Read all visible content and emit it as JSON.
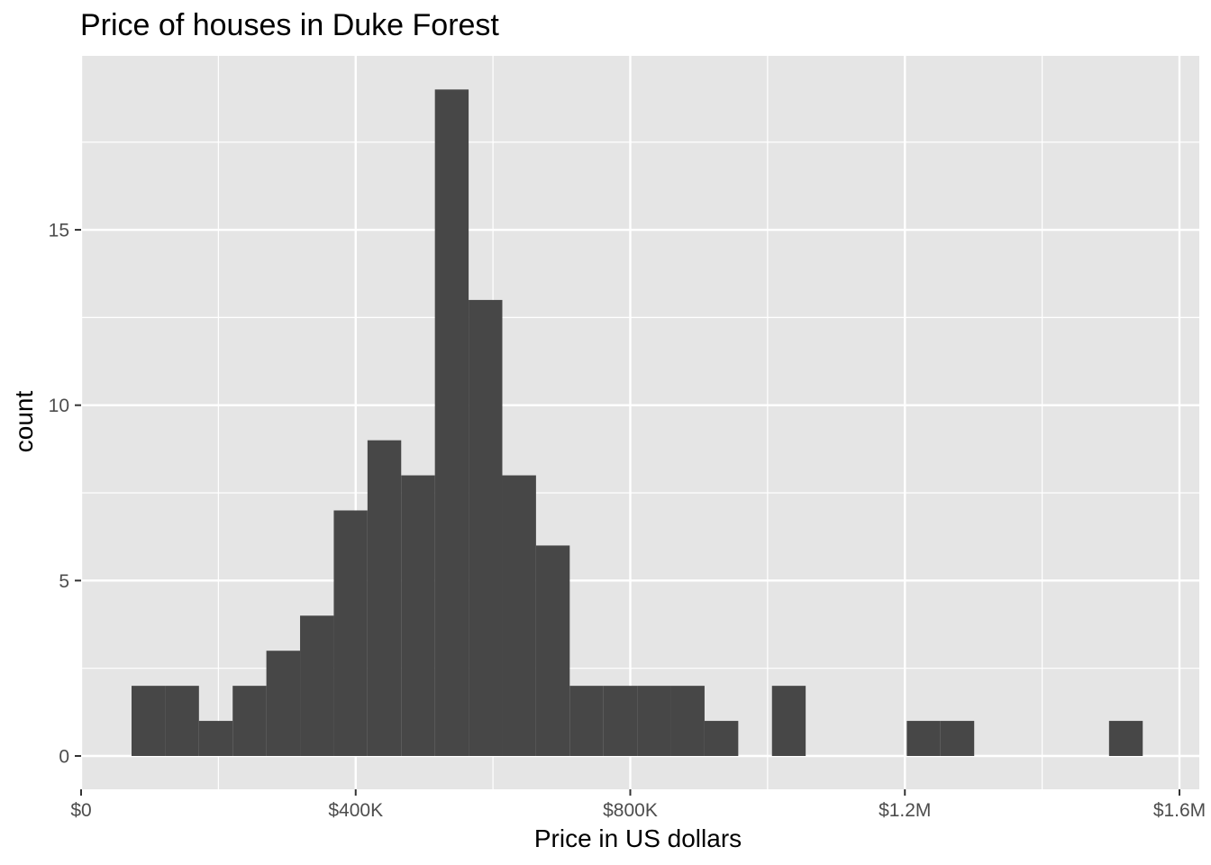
{
  "chart_data": {
    "type": "bar",
    "title": "Price of houses in Duke Forest",
    "xlabel": "Price in US dollars",
    "ylabel": "count",
    "xlim": [
      0,
      1600000
    ],
    "ylim": [
      0,
      19
    ],
    "x_ticks": [
      {
        "value": 0,
        "label": "$0"
      },
      {
        "value": 400000,
        "label": "$400K"
      },
      {
        "value": 800000,
        "label": "$800K"
      },
      {
        "value": 1200000,
        "label": "$1.2M"
      },
      {
        "value": 1600000,
        "label": "$1.6M"
      }
    ],
    "y_ticks": [
      {
        "value": 0,
        "label": "0"
      },
      {
        "value": 5,
        "label": "5"
      },
      {
        "value": 10,
        "label": "10"
      },
      {
        "value": 15,
        "label": "15"
      }
    ],
    "bins": [
      {
        "x0": 73500,
        "x1": 122600,
        "count": 2
      },
      {
        "x0": 122600,
        "x1": 171700,
        "count": 2
      },
      {
        "x0": 171700,
        "x1": 220800,
        "count": 1
      },
      {
        "x0": 220800,
        "x1": 269900,
        "count": 2
      },
      {
        "x0": 269900,
        "x1": 319000,
        "count": 3
      },
      {
        "x0": 319000,
        "x1": 368100,
        "count": 4
      },
      {
        "x0": 368100,
        "x1": 417200,
        "count": 7
      },
      {
        "x0": 417200,
        "x1": 466300,
        "count": 9
      },
      {
        "x0": 466300,
        "x1": 515400,
        "count": 8
      },
      {
        "x0": 515400,
        "x1": 564500,
        "count": 19
      },
      {
        "x0": 564500,
        "x1": 613600,
        "count": 13
      },
      {
        "x0": 613600,
        "x1": 662700,
        "count": 8
      },
      {
        "x0": 662700,
        "x1": 711800,
        "count": 6
      },
      {
        "x0": 711800,
        "x1": 760900,
        "count": 2
      },
      {
        "x0": 760900,
        "x1": 810000,
        "count": 2
      },
      {
        "x0": 810000,
        "x1": 859100,
        "count": 2
      },
      {
        "x0": 859100,
        "x1": 908200,
        "count": 2
      },
      {
        "x0": 908200,
        "x1": 957300,
        "count": 1
      },
      {
        "x0": 957300,
        "x1": 1006400,
        "count": 0
      },
      {
        "x0": 1006400,
        "x1": 1055500,
        "count": 2
      },
      {
        "x0": 1055500,
        "x1": 1104600,
        "count": 0
      },
      {
        "x0": 1104600,
        "x1": 1153700,
        "count": 0
      },
      {
        "x0": 1153700,
        "x1": 1202800,
        "count": 0
      },
      {
        "x0": 1202800,
        "x1": 1251900,
        "count": 1
      },
      {
        "x0": 1251900,
        "x1": 1301000,
        "count": 1
      },
      {
        "x0": 1301000,
        "x1": 1350100,
        "count": 0
      },
      {
        "x0": 1350100,
        "x1": 1399200,
        "count": 0
      },
      {
        "x0": 1399200,
        "x1": 1448300,
        "count": 0
      },
      {
        "x0": 1448300,
        "x1": 1497400,
        "count": 0
      },
      {
        "x0": 1497400,
        "x1": 1546500,
        "count": 1
      }
    ],
    "grid": true,
    "colors": {
      "panel_background": "#e5e5e5",
      "grid_line": "#ffffff",
      "bar_fill": "#474747",
      "tick_color": "#333333"
    }
  }
}
